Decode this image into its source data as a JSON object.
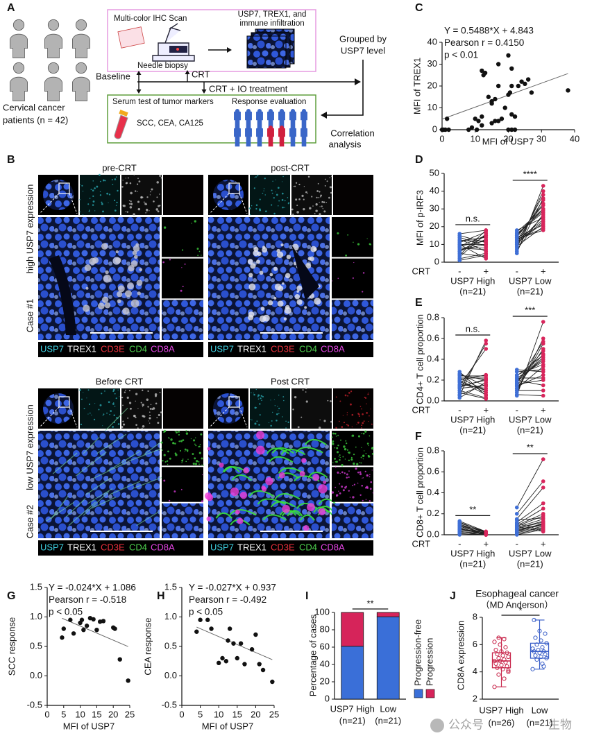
{
  "panel_a": {
    "label": "A",
    "patients": [
      "Cervical cancer",
      "patients (n = 42)"
    ],
    "ihc_scan": "Multi-color IHC Scan",
    "needle_biopsy": "Needle biopsy",
    "ihc_output": [
      "USP7, TREX1, and",
      "immune infiltration"
    ],
    "grouped": [
      "Grouped by",
      "USP7 level"
    ],
    "baseline": "Baseline",
    "crt": "CRT",
    "crt_io": "CRT + IO treatment",
    "serum_test": "Serum test of tumor markers",
    "markers": "SCC, CEA, CA125",
    "response": "Response evaluation",
    "correlation": [
      "Correlation",
      "analysis"
    ]
  },
  "panel_b": {
    "label": "B",
    "titles": [
      "pre-CRT",
      "post-CRT",
      "Before CRT",
      "Post CRT"
    ],
    "row_labels": [
      {
        "expression": "high USP7 expression",
        "case": "Case #1"
      },
      {
        "expression": "low USP7 expression",
        "case": "Case #2"
      }
    ],
    "stains": [
      {
        "name": "USP7",
        "color": "#3fd2e2"
      },
      {
        "name": "TREX1",
        "color": "#ffffff"
      },
      {
        "name": "CD3E",
        "color": "#e8303c"
      },
      {
        "name": "CD4",
        "color": "#4fd24f"
      },
      {
        "name": "CD8A",
        "color": "#e445e4"
      }
    ]
  },
  "chart_data": [
    {
      "panel": "C",
      "type": "scatter",
      "annotations": [
        "Y = 0.5488*X + 4.843",
        "Pearson r = 0.4150",
        "p < 0.01"
      ],
      "fit": {
        "slope": 0.5488,
        "intercept": 4.843
      },
      "x_label": "MFI of USP7",
      "y_label": "MFI of TREX1",
      "color": "#111111",
      "x": [
        0,
        0.5,
        1,
        2,
        1.5,
        8,
        9,
        10,
        10.5,
        11,
        12,
        12,
        12,
        12.5,
        13,
        14,
        15,
        15,
        16,
        16,
        17,
        17,
        17,
        18,
        19,
        20,
        20,
        20,
        20.5,
        21,
        21,
        21,
        21,
        22,
        22,
        23,
        24,
        25,
        26,
        27,
        38,
        15
      ],
      "y": [
        0,
        0,
        0,
        0,
        5,
        0,
        1,
        5,
        0,
        4,
        6,
        2,
        27,
        25,
        26,
        15,
        13,
        3,
        14,
        4,
        4,
        30,
        20,
        5,
        10,
        16,
        0,
        34,
        17,
        20,
        28,
        7,
        0,
        0,
        6,
        20,
        22,
        21,
        23,
        17,
        18,
        12
      ],
      "xlim": [
        0,
        40
      ],
      "ylim": [
        0,
        40
      ],
      "xticks": [
        0,
        10,
        20,
        30,
        40
      ],
      "yticks": [
        0,
        10,
        20,
        30,
        40
      ]
    },
    {
      "panel": "D",
      "type": "paired",
      "y_label": "MFI of p-IRF3",
      "condition_label": "CRT",
      "conditions": [
        "-",
        "+"
      ],
      "condition_colors": [
        "#3f6fd6",
        "#d8265c"
      ],
      "groups": [
        {
          "name": "USP7 High",
          "n_label": "(n=21)",
          "significance": "n.s.",
          "values": [
            [
              2,
              4,
              5,
              6,
              7,
              8,
              9,
              10,
              11,
              12,
              13,
              14,
              15,
              3,
              1,
              6,
              8,
              10,
              16,
              12,
              9
            ],
            [
              5,
              18,
              3,
              15,
              10,
              8,
              12,
              2,
              17,
              14,
              6,
              9,
              11,
              16,
              4,
              13,
              7,
              10,
              18,
              12,
              15
            ]
          ]
        },
        {
          "name": "USP7 Low",
          "n_label": "(n=21)",
          "significance": "****",
          "values": [
            [
              5,
              8,
              10,
              12,
              14,
              15,
              16,
              18,
              11,
              9,
              13,
              17,
              7,
              12,
              15,
              10,
              14,
              16,
              6,
              11,
              13
            ],
            [
              43,
              40,
              38,
              35,
              33,
              30,
              28,
              25,
              22,
              20,
              18,
              30,
              27,
              24,
              32,
              26,
              21,
              29,
              36,
              23,
              19
            ]
          ]
        }
      ],
      "ylim": [
        0,
        50
      ],
      "yticks": [
        0,
        10,
        20,
        30,
        40,
        50
      ]
    },
    {
      "panel": "E",
      "type": "paired",
      "y_label": "CD4+ T cell proportion",
      "condition_label": "CRT",
      "conditions": [
        "-",
        "+"
      ],
      "condition_colors": [
        "#3f6fd6",
        "#d8265c"
      ],
      "groups": [
        {
          "name": "USP7 High",
          "n_label": "(n=21)",
          "significance": "n.s.",
          "values": [
            [
              0.05,
              0.1,
              0.15,
              0.2,
              0.22,
              0.25,
              0.28,
              0.18,
              0.12,
              0.08,
              0.03,
              0.16,
              0.2,
              0.24,
              0.14,
              0.1,
              0.06,
              0.22,
              0.19,
              0.13,
              0.26
            ],
            [
              0.58,
              0.55,
              0.5,
              0.25,
              0.22,
              0.2,
              0.05,
              0.1,
              0.15,
              0.02,
              0.18,
              0.12,
              0.08,
              0.24,
              0.2,
              0.03,
              0.16,
              0.1,
              0.06,
              0.21,
              0.14
            ]
          ]
        },
        {
          "name": "USP7 Low",
          "n_label": "(n=21)",
          "significance": "***",
          "values": [
            [
              0.05,
              0.08,
              0.1,
              0.12,
              0.15,
              0.18,
              0.2,
              0.22,
              0.25,
              0.28,
              0.3,
              0.14,
              0.16,
              0.2,
              0.1,
              0.06,
              0.24,
              0.19,
              0.12,
              0.22,
              0.17
            ],
            [
              0.76,
              0.6,
              0.55,
              0.5,
              0.45,
              0.42,
              0.4,
              0.38,
              0.35,
              0.3,
              0.28,
              0.25,
              0.2,
              0.15,
              0.1,
              0.05,
              0.44,
              0.48,
              0.33,
              0.22,
              0.57
            ]
          ]
        }
      ],
      "ylim": [
        0,
        0.8
      ],
      "yticks": [
        {
          "value": 0,
          "label": "0.0"
        },
        0.2,
        0.4,
        0.6,
        0.8
      ]
    },
    {
      "panel": "F",
      "type": "paired",
      "y_label": "CD8+ T cell proportion",
      "condition_label": "CRT",
      "conditions": [
        "-",
        "+"
      ],
      "condition_colors": [
        "#3f6fd6",
        "#d8265c"
      ],
      "groups": [
        {
          "name": "USP7 High",
          "n_label": "(n=21)",
          "significance": "**",
          "values": [
            [
              0.13,
              0.12,
              0.1,
              0.09,
              0.08,
              0.07,
              0.06,
              0.05,
              0.04,
              0.03,
              0.02,
              0.01,
              0,
              0.11,
              0.1,
              0.08,
              0.06,
              0.05,
              0.03,
              0.02,
              0.09
            ],
            [
              0.03,
              0.02,
              0.02,
              0.01,
              0.01,
              0,
              0,
              0.03,
              0.02,
              0.01,
              0,
              0.02,
              0.01,
              0.03,
              0.02,
              0.01,
              0,
              0.02,
              0.01,
              0,
              0.03
            ]
          ]
        },
        {
          "name": "USP7 Low",
          "n_label": "(n=21)",
          "significance": "**",
          "values": [
            [
              0.26,
              0.2,
              0.15,
              0.12,
              0.1,
              0.09,
              0.08,
              0.07,
              0.06,
              0.05,
              0.04,
              0.03,
              0.02,
              0.01,
              0,
              0.11,
              0.08,
              0.06,
              0.05,
              0.03,
              0.14
            ],
            [
              0.72,
              0.51,
              0.45,
              0.3,
              0.25,
              0.2,
              0.18,
              0.15,
              0.12,
              0.1,
              0.1,
              0.08,
              0.07,
              0.06,
              0.05,
              0.04,
              0.03,
              0.13,
              0.09,
              0.11,
              0.16
            ]
          ]
        }
      ],
      "ylim": [
        0,
        0.8
      ],
      "yticks": [
        {
          "value": 0,
          "label": "0.0"
        },
        0.2,
        0.4,
        0.6,
        0.8
      ]
    },
    {
      "panel": "G",
      "type": "scatter",
      "annotations": [
        "Y = -0.024*X + 1.086",
        "Pearson r = -0.518",
        "p < 0.05"
      ],
      "fit": {
        "slope": -0.024,
        "intercept": 1.086
      },
      "x_label": "MFI of USP7",
      "y_label": "SCC response",
      "color": "#111111",
      "x": [
        4.5,
        5,
        7,
        8,
        10,
        10.5,
        11,
        12,
        13,
        14,
        15,
        16,
        17,
        20,
        20.5,
        22,
        24.5
      ],
      "y": [
        0.65,
        0.8,
        0.95,
        0.72,
        0.9,
        0.95,
        0.78,
        0.85,
        0.98,
        0.96,
        0.78,
        0.92,
        0.93,
        0.82,
        0.8,
        0.28,
        -0.08
      ],
      "xlim": [
        0,
        25
      ],
      "ylim": [
        -0.5,
        1.5
      ],
      "xticks": [
        0,
        5,
        10,
        15,
        20,
        25
      ],
      "yticks": [
        -0.5,
        {
          "value": 0,
          "label": "0.0"
        },
        0.5,
        {
          "value": 1,
          "label": "1.0"
        },
        1.5
      ]
    },
    {
      "panel": "H",
      "type": "scatter",
      "annotations": [
        "Y = -0.027*X + 0.937",
        "Pearson r = -0.492",
        "p < 0.05"
      ],
      "fit": {
        "slope": -0.027,
        "intercept": 0.937
      },
      "x_label": "MFI of USP7",
      "y_label": "CEA response",
      "color": "#111111",
      "x": [
        4,
        5,
        7,
        8,
        10,
        11,
        12,
        12.5,
        13,
        14,
        15,
        16,
        17,
        19,
        20,
        21,
        22,
        24.5
      ],
      "y": [
        0.75,
        0.95,
        0.95,
        0.8,
        0.22,
        0.3,
        0.25,
        0.6,
        0.8,
        0.55,
        0.3,
        0.55,
        0.2,
        0.45,
        0.7,
        0.2,
        0.1,
        -0.1
      ],
      "xlim": [
        0,
        25
      ],
      "ylim": [
        -0.5,
        1.5
      ],
      "xticks": [
        0,
        5,
        10,
        15,
        20,
        25
      ],
      "yticks": [
        -0.5,
        {
          "value": 0,
          "label": "0.0"
        },
        0.5,
        {
          "value": 1,
          "label": "1.0"
        },
        1.5
      ]
    },
    {
      "panel": "I",
      "type": "stacked_bar",
      "y_label": "Percentage of cases",
      "categories": [
        "USP7 High",
        "Low"
      ],
      "category_sublabels": [
        "(n=21)",
        "(n=21)"
      ],
      "significance": "**",
      "series": [
        {
          "name": "Progression-free",
          "color": "#3a6fd8",
          "values": [
            61,
            95
          ]
        },
        {
          "name": "Progression",
          "color": "#d6245a",
          "values": [
            39,
            5
          ]
        }
      ],
      "ylim": [
        0,
        100
      ],
      "yticks": [
        0,
        20,
        40,
        60,
        80,
        100
      ]
    },
    {
      "panel": "J",
      "type": "box",
      "title": "Esophageal cancer",
      "subtitle": "（MD Anderson）",
      "y_label": "CD8A expression",
      "significance": "*",
      "groups": [
        {
          "name": "USP7 High",
          "n_label": "(n=26)",
          "color": "#c8254a",
          "min": 2.9,
          "q1": 4.3,
          "median": 4.8,
          "q3": 5.4,
          "max": 6.5,
          "points": [
            2.9,
            3.5,
            3.8,
            4.0,
            4.2,
            4.3,
            4.4,
            4.5,
            4.6,
            4.7,
            4.8,
            4.8,
            4.9,
            5.0,
            5.1,
            5.2,
            5.3,
            5.4,
            5.5,
            5.6,
            5.8,
            6.0,
            6.2,
            6.4,
            6.5,
            4.1
          ]
        },
        {
          "name": "Low",
          "n_label": "(n=21)",
          "color": "#3a5fc8",
          "min": 4.2,
          "q1": 5.0,
          "median": 5.5,
          "q3": 6.1,
          "max": 7.8,
          "points": [
            4.2,
            4.6,
            4.9,
            5.0,
            5.1,
            5.2,
            5.3,
            5.4,
            5.5,
            5.5,
            5.6,
            5.7,
            5.8,
            6.0,
            6.1,
            6.3,
            6.5,
            6.8,
            7.0,
            7.8,
            4.4
          ]
        }
      ],
      "ylim": [
        2,
        8
      ],
      "yticks": [
        2,
        4,
        6,
        8
      ]
    }
  ],
  "watermark": [
    "公众号",
    "生物"
  ]
}
